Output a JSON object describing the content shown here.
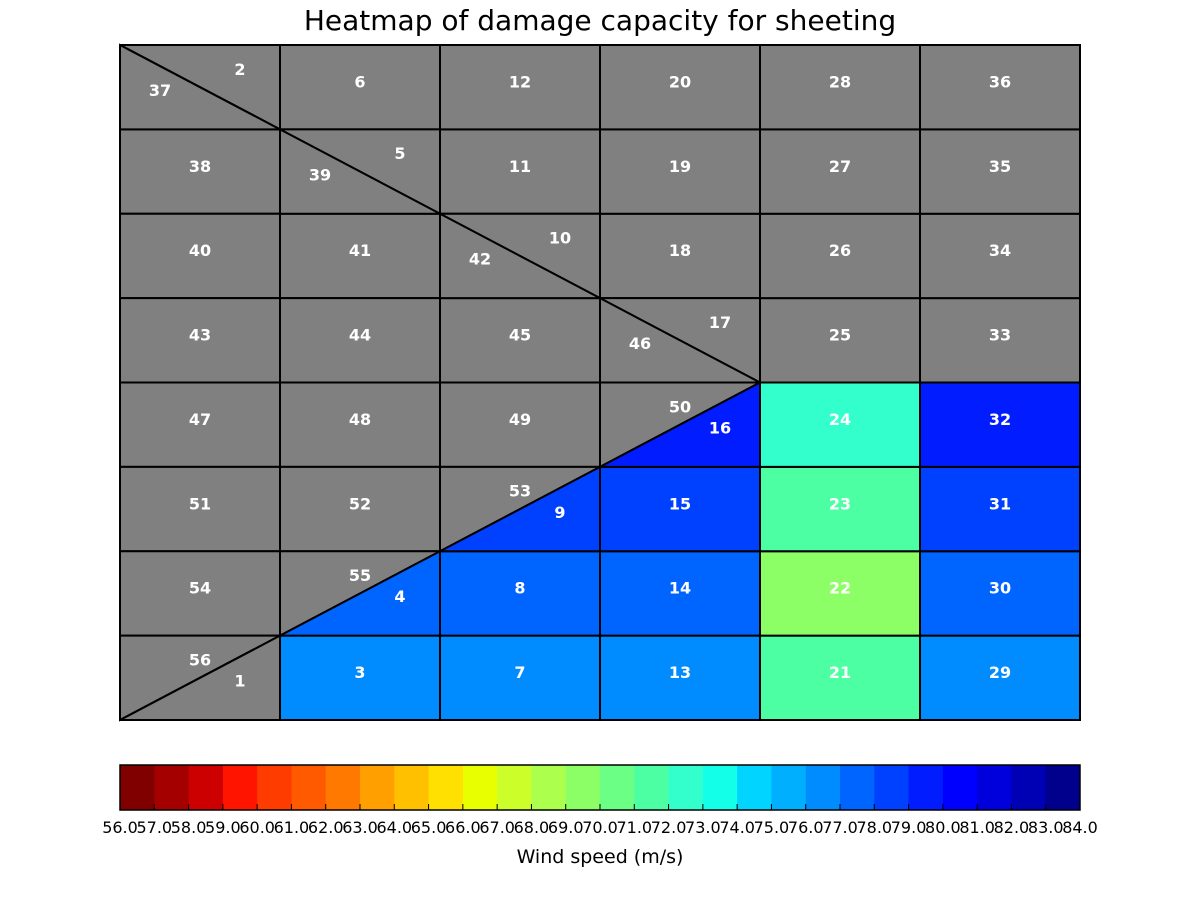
{
  "chart_data": {
    "type": "heatmap",
    "title": "Heatmap of damage capacity for sheeting",
    "no_data_color": "#808080",
    "grid": {
      "columns": 6,
      "rows": 8
    },
    "cells": [
      {
        "id": "1",
        "triangle": "lower",
        "value": null
      },
      {
        "id": "2",
        "triangle": "upper",
        "value": null
      },
      {
        "id": "3",
        "value": 76.0
      },
      {
        "id": "4",
        "triangle": "lower",
        "value": 77.0
      },
      {
        "id": "5",
        "triangle": "upper",
        "value": null
      },
      {
        "id": "6",
        "value": null
      },
      {
        "id": "7",
        "value": 76.0
      },
      {
        "id": "8",
        "value": 77.0
      },
      {
        "id": "9",
        "triangle": "lower",
        "value": 78.0
      },
      {
        "id": "10",
        "triangle": "upper",
        "value": null
      },
      {
        "id": "11",
        "value": null
      },
      {
        "id": "12",
        "value": null
      },
      {
        "id": "13",
        "value": 76.0
      },
      {
        "id": "14",
        "value": 77.0
      },
      {
        "id": "15",
        "value": 78.0
      },
      {
        "id": "16",
        "triangle": "lower",
        "value": 79.0
      },
      {
        "id": "17",
        "triangle": "upper",
        "value": null
      },
      {
        "id": "18",
        "value": null
      },
      {
        "id": "19",
        "value": null
      },
      {
        "id": "20",
        "value": null
      },
      {
        "id": "21",
        "value": 71.0
      },
      {
        "id": "22",
        "value": 69.0
      },
      {
        "id": "23",
        "value": 71.0
      },
      {
        "id": "24",
        "value": 72.0
      },
      {
        "id": "25",
        "value": null
      },
      {
        "id": "26",
        "value": null
      },
      {
        "id": "27",
        "value": null
      },
      {
        "id": "28",
        "value": null
      },
      {
        "id": "29",
        "value": 76.0
      },
      {
        "id": "30",
        "value": 77.0
      },
      {
        "id": "31",
        "value": 78.0
      },
      {
        "id": "32",
        "value": 79.0
      },
      {
        "id": "33",
        "value": null
      },
      {
        "id": "34",
        "value": null
      },
      {
        "id": "35",
        "value": null
      },
      {
        "id": "36",
        "value": null
      },
      {
        "id": "37",
        "triangle": "lower",
        "value": null
      },
      {
        "id": "38",
        "value": null
      },
      {
        "id": "39",
        "triangle": "lower",
        "value": null
      },
      {
        "id": "40",
        "value": null
      },
      {
        "id": "41",
        "value": null
      },
      {
        "id": "42",
        "triangle": "lower",
        "value": null
      },
      {
        "id": "43",
        "value": null
      },
      {
        "id": "44",
        "value": null
      },
      {
        "id": "45",
        "value": null
      },
      {
        "id": "46",
        "triangle": "lower",
        "value": null
      },
      {
        "id": "47",
        "value": null
      },
      {
        "id": "48",
        "value": null
      },
      {
        "id": "49",
        "value": null
      },
      {
        "id": "50",
        "triangle": "upper",
        "value": null
      },
      {
        "id": "51",
        "value": null
      },
      {
        "id": "52",
        "value": null
      },
      {
        "id": "53",
        "triangle": "upper",
        "value": null
      },
      {
        "id": "54",
        "value": null
      },
      {
        "id": "55",
        "triangle": "upper",
        "value": null
      },
      {
        "id": "56",
        "triangle": "upper",
        "value": null
      }
    ],
    "colorbar": {
      "label": "Wind speed (m/s)",
      "min": 56.0,
      "max": 84.0,
      "step": 1.0,
      "tick_labels": [
        "56.0",
        "57.0",
        "58.0",
        "59.0",
        "60.0",
        "61.0",
        "62.0",
        "63.0",
        "64.0",
        "65.0",
        "66.0",
        "67.0",
        "68.0",
        "69.0",
        "70.0",
        "71.0",
        "72.0",
        "73.0",
        "74.0",
        "75.0",
        "76.0",
        "77.0",
        "78.0",
        "79.0",
        "80.0",
        "81.0",
        "82.0",
        "83.0",
        "84.0"
      ],
      "colors": [
        "#800000",
        "#a50000",
        "#cc0000",
        "#ff1400",
        "#ff3c00",
        "#ff5a00",
        "#ff7800",
        "#ffa000",
        "#ffc000",
        "#ffe000",
        "#e8ff00",
        "#ccff2a",
        "#adff4d",
        "#8cff66",
        "#6cff85",
        "#4dffa3",
        "#33ffcc",
        "#14ffe8",
        "#00d4ff",
        "#00b0ff",
        "#008cff",
        "#0064ff",
        "#0040ff",
        "#001cff",
        "#0000ff",
        "#0000dc",
        "#0000b4",
        "#00008c"
      ]
    }
  }
}
